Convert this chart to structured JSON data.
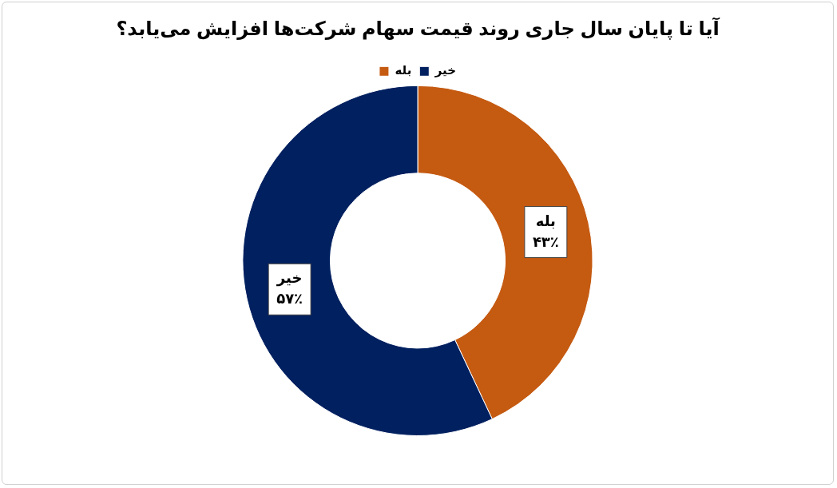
{
  "chart_data": {
    "type": "donut",
    "title": "آیا تا پایان سال جاری روند قیمت سهام شرکت‌ها افزایش می‌یابد؟",
    "categories": [
      "بله",
      "خیر"
    ],
    "values": [
      43,
      57
    ],
    "colors": [
      "#c55a11",
      "#002060"
    ],
    "value_labels": [
      "۴۳٪",
      "۵۷٪"
    ],
    "legend": "top"
  }
}
